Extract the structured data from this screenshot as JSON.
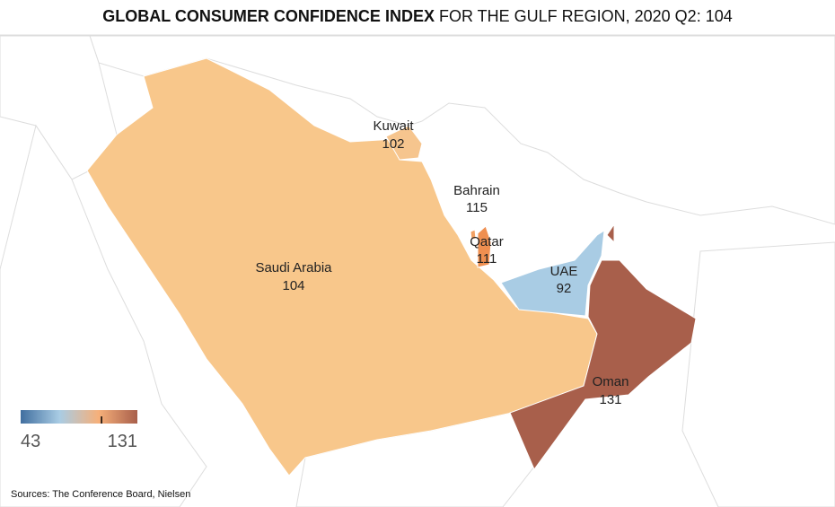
{
  "title_bold": "GLOBAL CONSUMER CONFIDENCE INDEX",
  "title_rest": " FOR THE GULF REGION, 2020 Q2: 104",
  "regions": [
    {
      "name": "Saudi Arabia",
      "value": 104,
      "color": "#f8c78b"
    },
    {
      "name": "Kuwait",
      "value": 102,
      "color": "#f6c58e"
    },
    {
      "name": "Bahrain",
      "value": 115,
      "color": "#f2a164"
    },
    {
      "name": "Qatar",
      "value": 111,
      "color": "#ef8f50"
    },
    {
      "name": "UAE",
      "value": 92,
      "color": "#a9cce4"
    },
    {
      "name": "Oman",
      "value": 131,
      "color": "#a85f4b"
    }
  ],
  "legend": {
    "min": 43,
    "max": 131,
    "marker": 104,
    "colors": [
      "#416f9f",
      "#a9cce4",
      "#f6b07a",
      "#a85f4b"
    ]
  },
  "source": "Sources: The Conference Board, Nielsen"
}
